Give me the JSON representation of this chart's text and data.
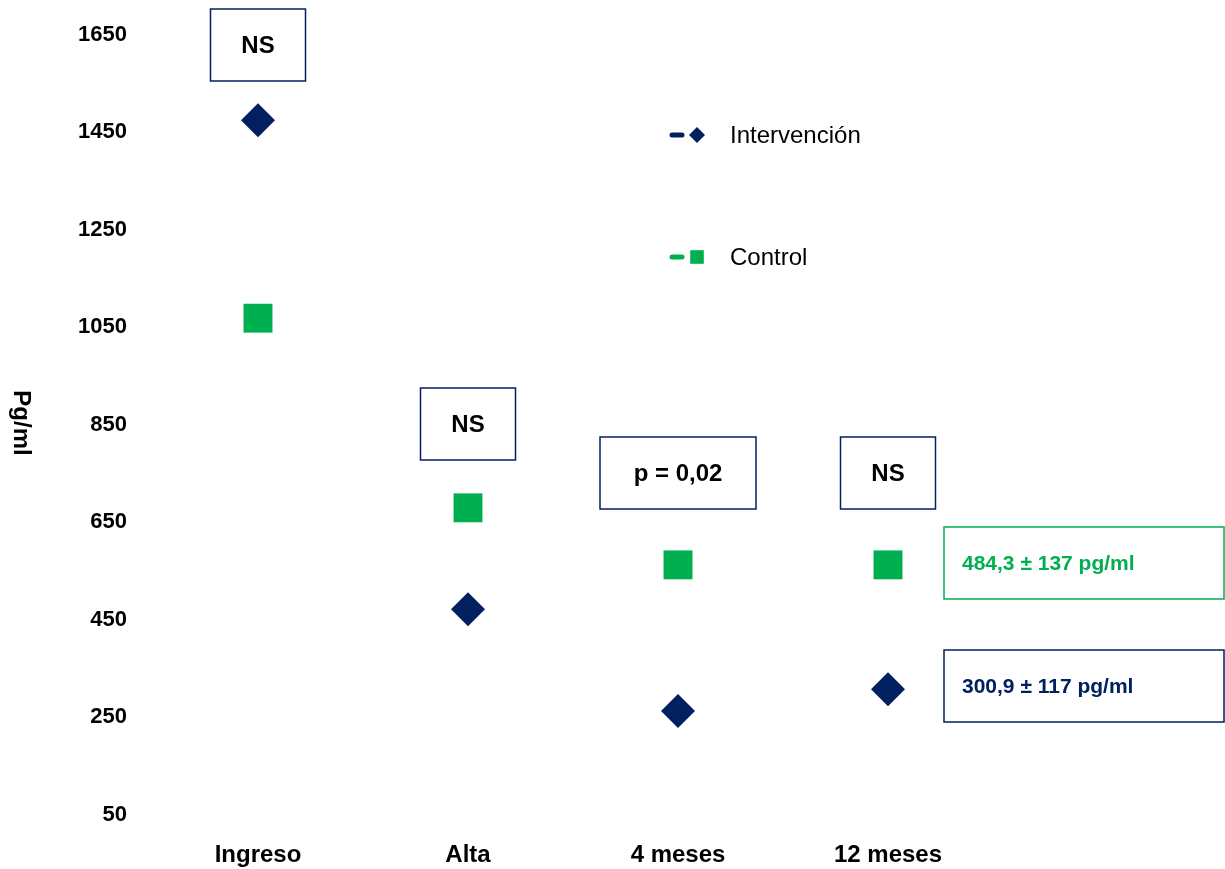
{
  "chart_data": {
    "type": "scatter",
    "ylabel": "Pg/ml",
    "categories": [
      "Ingreso",
      "Alta",
      "4 meses",
      "12 meses"
    ],
    "series": [
      {
        "name": "Intervención",
        "color": "#002060",
        "marker": "diamond",
        "values": [
          1471,
          468,
          259,
          304
        ]
      },
      {
        "name": "Control",
        "color": "#00b050",
        "marker": "square",
        "values": [
          1065,
          676,
          559,
          559
        ]
      }
    ],
    "ylim": [
      50,
      1650
    ],
    "yticks": [
      50,
      250,
      450,
      650,
      850,
      1050,
      1250,
      1450,
      1650
    ],
    "grid": false,
    "legend": "top right",
    "annotations": [
      "NS",
      "NS",
      "p = 0,02",
      "NS",
      "484,3 ± 137 pg/ml",
      "300,9 ± 117 pg/ml"
    ]
  }
}
